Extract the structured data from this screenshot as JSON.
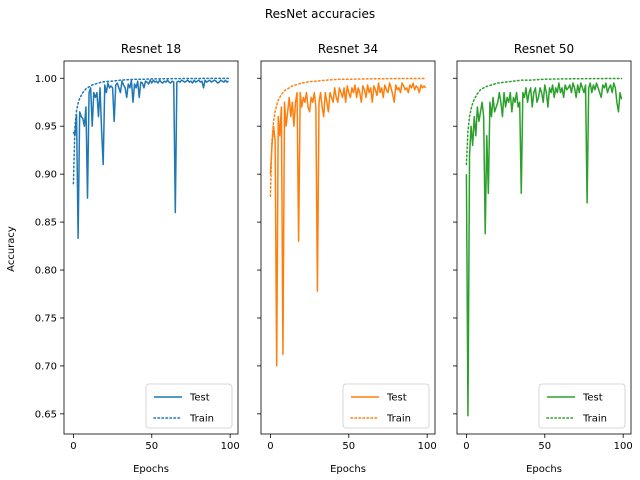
{
  "figure": {
    "title": "ResNet accuracies",
    "ylabel": "Accuracy",
    "xlabel": "Epochs"
  },
  "chart_data": [
    {
      "type": "line",
      "title": "Resnet 18",
      "xlabel": "Epochs",
      "ylabel": "Accuracy",
      "xlim": [
        -6,
        105
      ],
      "ylim": [
        0.629,
        1.018
      ],
      "xticks": [
        "0",
        "50",
        "100"
      ],
      "yticks": [
        "0.65",
        "0.70",
        "0.75",
        "0.80",
        "0.85",
        "0.90",
        "0.95",
        "1.00"
      ],
      "legend": "bottom-right",
      "color": "#1f77b4",
      "series": [
        {
          "name": "Test",
          "style": "solid",
          "x": [
            0,
            1,
            2,
            3,
            4,
            5,
            6,
            7,
            8,
            9,
            10,
            11,
            12,
            13,
            14,
            15,
            16,
            17,
            18,
            19,
            20,
            21,
            22,
            23,
            24,
            25,
            26,
            27,
            28,
            29,
            30,
            31,
            32,
            33,
            34,
            35,
            36,
            37,
            38,
            39,
            40,
            41,
            42,
            43,
            44,
            45,
            46,
            47,
            48,
            49,
            50,
            51,
            52,
            53,
            54,
            55,
            56,
            57,
            58,
            59,
            60,
            61,
            62,
            63,
            64,
            65,
            66,
            67,
            68,
            69,
            70,
            71,
            72,
            73,
            74,
            75,
            76,
            77,
            78,
            79,
            80,
            81,
            82,
            83,
            84,
            85,
            86,
            87,
            88,
            89,
            90,
            91,
            92,
            93,
            94,
            95,
            96,
            97,
            98,
            99
          ],
          "values": [
            0.944,
            0.94,
            0.962,
            0.833,
            0.965,
            0.96,
            0.958,
            0.95,
            0.97,
            0.875,
            0.985,
            0.99,
            0.95,
            0.985,
            0.98,
            0.985,
            0.96,
            0.99,
            0.945,
            0.91,
            0.993,
            0.985,
            0.995,
            0.99,
            0.992,
            0.99,
            0.955,
            0.993,
            0.995,
            0.99,
            0.985,
            0.997,
            0.993,
            0.99,
            0.98,
            0.994,
            0.99,
            0.998,
            0.975,
            0.994,
            0.99,
            0.997,
            0.98,
            0.996,
            0.995,
            0.99,
            0.997,
            0.996,
            0.994,
            0.998,
            0.995,
            0.998,
            0.996,
            0.997,
            0.995,
            0.998,
            0.996,
            0.995,
            0.997,
            0.996,
            0.998,
            0.996,
            0.995,
            0.997,
            0.996,
            0.86,
            0.996,
            0.997,
            0.996,
            0.998,
            0.997,
            0.996,
            0.997,
            0.998,
            0.996,
            0.997,
            0.995,
            0.998,
            0.996,
            0.997,
            0.998,
            0.996,
            0.997,
            0.99,
            0.998,
            0.996,
            0.997,
            0.998,
            0.996,
            0.997,
            0.998,
            0.997,
            0.995,
            0.996,
            0.998,
            0.997,
            0.996,
            0.998,
            0.996,
            0.997
          ]
        },
        {
          "name": "Train",
          "style": "dotted",
          "x": [
            0,
            1,
            2,
            3,
            4,
            5,
            6,
            7,
            8,
            9,
            10,
            12,
            14,
            16,
            18,
            20,
            25,
            30,
            35,
            40,
            45,
            50,
            60,
            70,
            80,
            90,
            99
          ],
          "values": [
            0.89,
            0.95,
            0.966,
            0.974,
            0.979,
            0.982,
            0.985,
            0.987,
            0.989,
            0.99,
            0.991,
            0.993,
            0.994,
            0.995,
            0.996,
            0.9965,
            0.997,
            0.998,
            0.9985,
            0.999,
            0.999,
            0.9993,
            0.9995,
            0.9997,
            0.9998,
            0.9999,
            0.9999
          ]
        }
      ]
    },
    {
      "type": "line",
      "title": "Resnet 34",
      "xlabel": "Epochs",
      "xlim": [
        -6,
        105
      ],
      "ylim": [
        0.629,
        1.018
      ],
      "xticks": [
        "0",
        "50",
        "100"
      ],
      "legend": "bottom-right",
      "color": "#ff7f0e",
      "series": [
        {
          "name": "Test",
          "style": "solid",
          "x": [
            0,
            1,
            2,
            3,
            4,
            5,
            6,
            7,
            8,
            9,
            10,
            11,
            12,
            13,
            14,
            15,
            16,
            17,
            18,
            19,
            20,
            21,
            22,
            23,
            24,
            25,
            26,
            27,
            28,
            29,
            30,
            31,
            32,
            33,
            34,
            35,
            36,
            37,
            38,
            39,
            40,
            41,
            42,
            43,
            44,
            45,
            46,
            47,
            48,
            49,
            50,
            51,
            52,
            53,
            54,
            55,
            56,
            57,
            58,
            59,
            60,
            61,
            62,
            63,
            64,
            65,
            66,
            67,
            68,
            69,
            70,
            71,
            72,
            73,
            74,
            75,
            76,
            77,
            78,
            79,
            80,
            81,
            82,
            83,
            84,
            85,
            86,
            87,
            88,
            89,
            90,
            91,
            92,
            93,
            94,
            95,
            96,
            97,
            98,
            99
          ],
          "values": [
            0.9,
            0.93,
            0.95,
            0.935,
            0.7,
            0.96,
            0.94,
            0.97,
            0.712,
            0.975,
            0.95,
            0.965,
            0.98,
            0.96,
            0.975,
            0.95,
            0.975,
            0.985,
            0.83,
            0.985,
            0.97,
            0.98,
            0.975,
            0.985,
            0.97,
            0.965,
            0.98,
            0.975,
            0.985,
            0.97,
            0.778,
            0.975,
            0.985,
            0.97,
            0.96,
            0.985,
            0.975,
            0.965,
            0.985,
            0.98,
            0.975,
            0.99,
            0.98,
            0.975,
            0.99,
            0.985,
            0.98,
            0.99,
            0.975,
            0.992,
            0.985,
            0.98,
            0.99,
            0.985,
            0.993,
            0.98,
            0.99,
            0.985,
            0.975,
            0.992,
            0.988,
            0.98,
            0.993,
            0.985,
            0.99,
            0.975,
            0.992,
            0.988,
            0.982,
            0.995,
            0.985,
            0.99,
            0.98,
            0.993,
            0.988,
            0.985,
            0.995,
            0.99,
            0.983,
            0.975,
            0.993,
            0.988,
            0.99,
            0.985,
            0.995,
            0.992,
            0.988,
            0.99,
            0.985,
            0.993,
            0.99,
            0.995,
            0.988,
            0.992,
            0.99,
            0.985,
            0.993,
            0.99,
            0.992,
            0.99
          ]
        },
        {
          "name": "Train",
          "style": "dotted",
          "x": [
            0,
            1,
            2,
            3,
            4,
            5,
            6,
            7,
            8,
            9,
            10,
            12,
            14,
            16,
            18,
            20,
            25,
            30,
            35,
            40,
            45,
            50,
            60,
            70,
            80,
            90,
            99
          ],
          "values": [
            0.877,
            0.935,
            0.955,
            0.965,
            0.972,
            0.977,
            0.98,
            0.983,
            0.985,
            0.987,
            0.988,
            0.99,
            0.992,
            0.993,
            0.994,
            0.995,
            0.9965,
            0.997,
            0.998,
            0.9985,
            0.999,
            0.999,
            0.9993,
            0.9995,
            0.9997,
            0.9998,
            0.9998
          ]
        }
      ]
    },
    {
      "type": "line",
      "title": "Resnet 50",
      "xlabel": "Epochs",
      "xlim": [
        -6,
        105
      ],
      "ylim": [
        0.629,
        1.018
      ],
      "xticks": [
        "0",
        "50",
        "100"
      ],
      "legend": "bottom-right",
      "color": "#2ca02c",
      "series": [
        {
          "name": "Test",
          "style": "solid",
          "x": [
            0,
            1,
            2,
            3,
            4,
            5,
            6,
            7,
            8,
            9,
            10,
            11,
            12,
            13,
            14,
            15,
            16,
            17,
            18,
            19,
            20,
            21,
            22,
            23,
            24,
            25,
            26,
            27,
            28,
            29,
            30,
            31,
            32,
            33,
            34,
            35,
            36,
            37,
            38,
            39,
            40,
            41,
            42,
            43,
            44,
            45,
            46,
            47,
            48,
            49,
            50,
            51,
            52,
            53,
            54,
            55,
            56,
            57,
            58,
            59,
            60,
            61,
            62,
            63,
            64,
            65,
            66,
            67,
            68,
            69,
            70,
            71,
            72,
            73,
            74,
            75,
            76,
            77,
            78,
            79,
            80,
            81,
            82,
            83,
            84,
            85,
            86,
            87,
            88,
            89,
            90,
            91,
            92,
            93,
            94,
            95,
            96,
            97,
            98,
            99
          ],
          "values": [
            0.9,
            0.648,
            0.92,
            0.95,
            0.93,
            0.96,
            0.94,
            0.97,
            0.955,
            0.965,
            0.975,
            0.96,
            0.838,
            0.94,
            0.88,
            0.975,
            0.96,
            0.98,
            0.965,
            0.97,
            0.975,
            0.985,
            0.975,
            0.96,
            0.985,
            0.97,
            0.98,
            0.975,
            0.985,
            0.965,
            0.98,
            0.975,
            0.985,
            0.97,
            0.975,
            0.88,
            0.985,
            0.98,
            0.99,
            0.975,
            0.985,
            0.99,
            0.97,
            0.985,
            0.99,
            0.975,
            0.98,
            0.99,
            0.985,
            0.975,
            0.993,
            0.985,
            0.97,
            0.99,
            0.985,
            0.993,
            0.98,
            0.99,
            0.985,
            0.995,
            0.985,
            0.99,
            0.98,
            0.993,
            0.988,
            0.99,
            0.993,
            0.985,
            0.995,
            0.99,
            0.98,
            0.993,
            0.985,
            0.995,
            0.99,
            0.985,
            0.993,
            0.87,
            0.99,
            0.995,
            0.985,
            0.993,
            0.988,
            0.995,
            0.99,
            0.985,
            0.98,
            0.993,
            0.99,
            0.995,
            0.985,
            0.99,
            0.993,
            0.985,
            0.995,
            0.99,
            0.975,
            0.965,
            0.985,
            0.978
          ]
        },
        {
          "name": "Train",
          "style": "dotted",
          "x": [
            0,
            1,
            2,
            3,
            4,
            5,
            6,
            7,
            8,
            9,
            10,
            12,
            14,
            16,
            18,
            20,
            25,
            30,
            35,
            40,
            45,
            50,
            60,
            70,
            80,
            90,
            99
          ],
          "values": [
            0.91,
            0.945,
            0.96,
            0.968,
            0.974,
            0.978,
            0.981,
            0.984,
            0.986,
            0.988,
            0.989,
            0.991,
            0.992,
            0.993,
            0.994,
            0.995,
            0.996,
            0.997,
            0.998,
            0.998,
            0.9985,
            0.999,
            0.9993,
            0.9995,
            0.9996,
            0.9997,
            0.9997
          ]
        }
      ]
    }
  ]
}
